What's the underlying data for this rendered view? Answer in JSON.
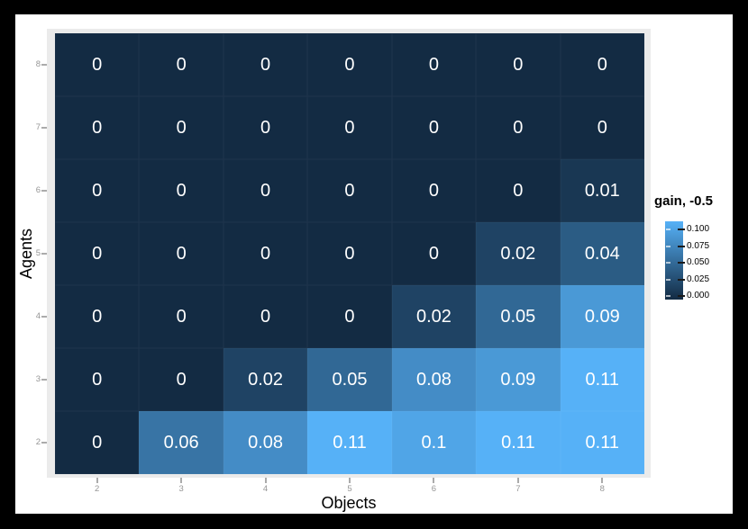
{
  "chart_data": {
    "type": "heatmap",
    "xlabel": "Objects",
    "ylabel": "Agents",
    "x_categories": [
      "2",
      "3",
      "4",
      "5",
      "6",
      "7",
      "8"
    ],
    "y_categories": [
      "8",
      "7",
      "6",
      "5",
      "4",
      "3",
      "2"
    ],
    "rows": [
      [
        0,
        0,
        0,
        0,
        0,
        0,
        0
      ],
      [
        0,
        0,
        0,
        0,
        0,
        0,
        0
      ],
      [
        0,
        0,
        0,
        0,
        0,
        0,
        0.01
      ],
      [
        0,
        0,
        0,
        0,
        0,
        0.02,
        0.04
      ],
      [
        0,
        0,
        0,
        0,
        0.02,
        0.05,
        0.09
      ],
      [
        0,
        0,
        0.02,
        0.05,
        0.08,
        0.09,
        0.11
      ],
      [
        0,
        0.06,
        0.08,
        0.11,
        0.1,
        0.11,
        0.11
      ]
    ],
    "value_domain": [
      0,
      0.11
    ],
    "grid": false,
    "legend": {
      "title": "gain, -0.5",
      "position": "right",
      "tick_labels": [
        "0.100",
        "0.075",
        "0.050",
        "0.025",
        "0.000"
      ],
      "tick_values": [
        0.1,
        0.075,
        0.05,
        0.025,
        0.0
      ]
    },
    "colors": {
      "low": "#132B43",
      "high": "#56B1F7",
      "panel_bg": "#EBEBEB",
      "cell_text": "#FFFFFF",
      "axis_tick_label": "#969696",
      "axis_title": "#000000",
      "outer_frame": "#000000",
      "background": "#FFFFFF"
    }
  }
}
